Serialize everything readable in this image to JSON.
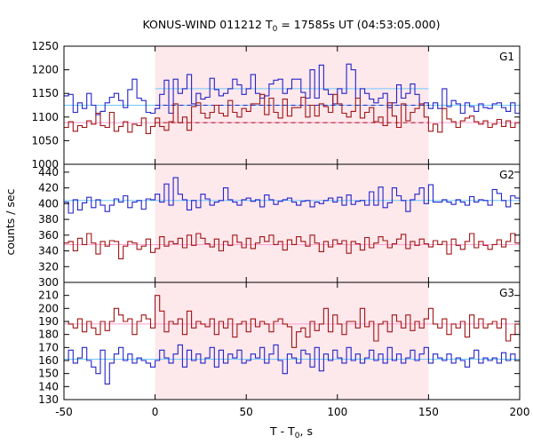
{
  "figure": {
    "title_main": "KONUS-WIND 011212 T",
    "title_sub": "0",
    "title_rest": " = 17585s UT (04:53:05.000)",
    "xlabel_main": "T - T",
    "xlabel_sub": "0",
    "xlabel_rest": ", s",
    "ylabel": "counts / sec"
  },
  "chart_data": [
    {
      "panel": "G1",
      "type": "line",
      "step": true,
      "x": [
        -50,
        -47.5,
        -45,
        -42.5,
        -40,
        -37.5,
        -35,
        -32.5,
        -30,
        -27.5,
        -25,
        -22.5,
        -20,
        -17.5,
        -15,
        -12.5,
        -10,
        -7.5,
        -5,
        -2.5,
        0,
        2.5,
        5,
        7.5,
        10,
        12.5,
        15,
        17.5,
        20,
        22.5,
        25,
        27.5,
        30,
        32.5,
        35,
        37.5,
        40,
        42.5,
        45,
        47.5,
        50,
        52.5,
        55,
        57.5,
        60,
        62.5,
        65,
        67.5,
        70,
        72.5,
        75,
        77.5,
        80,
        82.5,
        85,
        87.5,
        90,
        92.5,
        95,
        97.5,
        100,
        102.5,
        105,
        107.5,
        110,
        112.5,
        115,
        117.5,
        120,
        122.5,
        125,
        127.5,
        130,
        132.5,
        135,
        137.5,
        140,
        142.5,
        145,
        147.5,
        150,
        152.5,
        155,
        157.5,
        160,
        162.5,
        165,
        167.5,
        170,
        172.5,
        175,
        177.5,
        180,
        182.5,
        185,
        187.5,
        190,
        192.5,
        195,
        197.5,
        200
      ],
      "series": [
        {
          "color": "#2424c8",
          "values": [
            1145,
            1148,
            1110,
            1130,
            1118,
            1150,
            1125,
            1105,
            1112,
            1130,
            1142,
            1150,
            1135,
            1120,
            1158,
            1180,
            1140,
            1135,
            1110,
            1108,
            1118,
            1148,
            1178,
            1108,
            1180,
            1150,
            1160,
            1190,
            1128,
            1150,
            1138,
            1142,
            1182,
            1158,
            1145,
            1150,
            1160,
            1180,
            1168,
            1148,
            1160,
            1190,
            1150,
            1140,
            1145,
            1170,
            1178,
            1180,
            1150,
            1160,
            1180,
            1180,
            1152,
            1140,
            1200,
            1140,
            1210,
            1158,
            1148,
            1128,
            1160,
            1150,
            1212,
            1200,
            1140,
            1160,
            1150,
            1138,
            1130,
            1140,
            1150,
            1120,
            1130,
            1168,
            1140,
            1150,
            1170,
            1148,
            1125,
            1130,
            1118,
            1130,
            1118,
            1160,
            1122,
            1135,
            1128,
            1108,
            1130,
            1122,
            1112,
            1128,
            1120,
            1118,
            1128,
            1130,
            1120,
            1112,
            1130,
            1108,
            1128
          ]
        },
        {
          "color": "#a01414",
          "values": [
            1078,
            1090,
            1070,
            1082,
            1078,
            1092,
            1085,
            1108,
            1082,
            1078,
            1110,
            1070,
            1080,
            1090,
            1068,
            1085,
            1082,
            1098,
            1065,
            1080,
            1098,
            1080,
            1072,
            1090,
            1128,
            1088,
            1100,
            1072,
            1122,
            1130,
            1108,
            1098,
            1110,
            1125,
            1108,
            1102,
            1135,
            1110,
            1100,
            1118,
            1112,
            1128,
            1128,
            1148,
            1105,
            1140,
            1110,
            1098,
            1138,
            1102,
            1120,
            1120,
            1142,
            1100,
            1125,
            1102,
            1128,
            1122,
            1110,
            1148,
            1128,
            1108,
            1100,
            1112,
            1140,
            1098,
            1110,
            1120,
            1090,
            1100,
            1082,
            1130,
            1102,
            1078,
            1128,
            1092,
            1110,
            1118,
            1128,
            1100,
            1070,
            1085,
            1068,
            1118,
            1096,
            1090,
            1078,
            1092,
            1098,
            1102,
            1090,
            1085,
            1092,
            1078,
            1085,
            1095,
            1080,
            1092,
            1078,
            1088,
            1092
          ]
        }
      ],
      "reference_lines": [
        {
          "color": "#6ec8ff",
          "value": 1125
        },
        {
          "color": "#ff9fd0",
          "value": 1088
        },
        {
          "color": "#6ec8ff",
          "value": 1160,
          "x_range": [
            0,
            150
          ]
        },
        {
          "color": "#a01414",
          "value": 1088,
          "dashed": true,
          "x_range": [
            0,
            150
          ]
        },
        {
          "color": "#2424c8",
          "value": 1125,
          "dashed": true,
          "x_range": [
            0,
            150
          ]
        }
      ],
      "ylim": [
        1000,
        1250
      ],
      "yticks": [
        1000,
        1050,
        1100,
        1150,
        1200,
        1250
      ],
      "annotation": "G1"
    },
    {
      "panel": "G2",
      "type": "line",
      "step": true,
      "x": [
        -50,
        -47.5,
        -45,
        -42.5,
        -40,
        -37.5,
        -35,
        -32.5,
        -30,
        -27.5,
        -25,
        -22.5,
        -20,
        -17.5,
        -15,
        -12.5,
        -10,
        -7.5,
        -5,
        -2.5,
        0,
        2.5,
        5,
        7.5,
        10,
        12.5,
        15,
        17.5,
        20,
        22.5,
        25,
        27.5,
        30,
        32.5,
        35,
        37.5,
        40,
        42.5,
        45,
        47.5,
        50,
        52.5,
        55,
        57.5,
        60,
        62.5,
        65,
        67.5,
        70,
        72.5,
        75,
        77.5,
        80,
        82.5,
        85,
        87.5,
        90,
        92.5,
        95,
        97.5,
        100,
        102.5,
        105,
        107.5,
        110,
        112.5,
        115,
        117.5,
        120,
        122.5,
        125,
        127.5,
        130,
        132.5,
        135,
        137.5,
        140,
        142.5,
        145,
        147.5,
        150,
        152.5,
        155,
        157.5,
        160,
        162.5,
        165,
        167.5,
        170,
        172.5,
        175,
        177.5,
        180,
        182.5,
        185,
        187.5,
        190,
        192.5,
        195,
        197.5,
        200
      ],
      "series": [
        {
          "color": "#2424c8",
          "values": [
            402,
            388,
            405,
            392,
            401,
            408,
            395,
            405,
            398,
            390,
            398,
            406,
            402,
            410,
            395,
            402,
            404,
            393,
            406,
            405,
            412,
            402,
            425,
            398,
            433,
            412,
            405,
            392,
            404,
            395,
            412,
            406,
            398,
            402,
            404,
            420,
            405,
            402,
            398,
            405,
            407,
            403,
            405,
            396,
            411,
            405,
            399,
            403,
            405,
            407,
            402,
            398,
            403,
            404,
            396,
            402,
            400,
            404,
            407,
            402,
            408,
            398,
            411,
            399,
            403,
            404,
            398,
            415,
            398,
            421,
            395,
            401,
            420,
            410,
            404,
            390,
            405,
            412,
            420,
            400,
            424,
            402,
            402,
            405,
            402,
            399,
            405,
            402,
            398,
            409,
            402,
            405,
            404,
            398,
            418,
            413,
            404,
            396,
            410,
            407,
            403
          ]
        },
        {
          "color": "#a01414",
          "values": [
            350,
            352,
            340,
            356,
            348,
            362,
            350,
            336,
            352,
            346,
            353,
            352,
            330,
            346,
            352,
            350,
            342,
            346,
            355,
            338,
            343,
            358,
            346,
            352,
            349,
            356,
            344,
            360,
            347,
            362,
            356,
            349,
            345,
            355,
            340,
            352,
            347,
            360,
            351,
            344,
            356,
            343,
            350,
            358,
            352,
            360,
            348,
            352,
            341,
            354,
            348,
            358,
            352,
            346,
            360,
            350,
            339,
            352,
            345,
            354,
            349,
            353,
            337,
            352,
            349,
            341,
            357,
            344,
            350,
            358,
            353,
            344,
            349,
            355,
            361,
            343,
            352,
            347,
            355,
            349,
            345,
            353,
            348,
            352,
            336,
            355,
            347,
            342,
            352,
            362,
            344,
            352,
            347,
            342,
            348,
            354,
            345,
            352,
            362,
            350,
            355
          ]
        }
      ],
      "reference_lines": [
        {
          "color": "#6ec8ff",
          "value": 404
        },
        {
          "color": "#ff9fd0",
          "value": 348
        }
      ],
      "ylim": [
        300,
        450
      ],
      "yticks": [
        300,
        320,
        340,
        360,
        380,
        400,
        420,
        440
      ],
      "annotation": "G2"
    },
    {
      "panel": "G3",
      "type": "line",
      "step": true,
      "x": [
        -50,
        -47.5,
        -45,
        -42.5,
        -40,
        -37.5,
        -35,
        -32.5,
        -30,
        -27.5,
        -25,
        -22.5,
        -20,
        -17.5,
        -15,
        -12.5,
        -10,
        -7.5,
        -5,
        -2.5,
        0,
        2.5,
        5,
        7.5,
        10,
        12.5,
        15,
        17.5,
        20,
        22.5,
        25,
        27.5,
        30,
        32.5,
        35,
        37.5,
        40,
        42.5,
        45,
        47.5,
        50,
        52.5,
        55,
        57.5,
        60,
        62.5,
        65,
        67.5,
        70,
        72.5,
        75,
        77.5,
        80,
        82.5,
        85,
        87.5,
        90,
        92.5,
        95,
        97.5,
        100,
        102.5,
        105,
        107.5,
        110,
        112.5,
        115,
        117.5,
        120,
        122.5,
        125,
        127.5,
        130,
        132.5,
        135,
        137.5,
        140,
        142.5,
        145,
        147.5,
        150,
        152.5,
        155,
        157.5,
        160,
        162.5,
        165,
        167.5,
        170,
        172.5,
        175,
        177.5,
        180,
        182.5,
        185,
        187.5,
        190,
        192.5,
        195,
        197.5,
        200
      ],
      "series": [
        {
          "color": "#2424c8",
          "values": [
            160,
            168,
            158,
            162,
            170,
            160,
            155,
            150,
            168,
            142,
            158,
            165,
            170,
            160,
            165,
            158,
            162,
            160,
            158,
            155,
            160,
            168,
            162,
            158,
            165,
            172,
            155,
            168,
            160,
            165,
            158,
            162,
            170,
            155,
            168,
            158,
            165,
            162,
            168,
            158,
            160,
            165,
            162,
            170,
            158,
            165,
            172,
            160,
            150,
            165,
            162,
            158,
            168,
            165,
            155,
            170,
            152,
            165,
            160,
            168,
            162,
            158,
            170,
            160,
            165,
            158,
            162,
            168,
            160,
            165,
            158,
            170,
            160,
            165,
            158,
            162,
            168,
            160,
            165,
            170,
            158,
            165,
            162,
            160,
            165,
            158,
            162,
            160,
            155,
            162,
            168,
            158,
            162,
            160,
            162,
            158,
            166,
            160,
            165,
            160,
            160
          ]
        },
        {
          "color": "#a01414",
          "values": [
            190,
            188,
            185,
            192,
            182,
            190,
            185,
            180,
            190,
            183,
            190,
            200,
            195,
            190,
            192,
            180,
            190,
            195,
            192,
            185,
            210,
            198,
            182,
            190,
            188,
            192,
            180,
            198,
            185,
            190,
            188,
            186,
            192,
            180,
            190,
            185,
            192,
            178,
            188,
            190,
            182,
            192,
            186,
            190,
            188,
            182,
            190,
            192,
            188,
            186,
            170,
            182,
            185,
            178,
            190,
            183,
            188,
            200,
            182,
            195,
            188,
            180,
            190,
            190,
            185,
            200,
            186,
            190,
            175,
            188,
            190,
            182,
            195,
            190,
            185,
            195,
            183,
            190,
            185,
            192,
            200,
            188,
            185,
            192,
            180,
            188,
            185,
            190,
            178,
            195,
            185,
            192,
            185,
            188,
            190,
            185,
            192,
            175,
            180,
            188,
            178
          ]
        }
      ],
      "reference_lines": [
        {
          "color": "#6ec8ff",
          "value": 161
        },
        {
          "color": "#ff9fd0",
          "value": 188
        }
      ],
      "ylim": [
        130,
        220
      ],
      "yticks": [
        130,
        140,
        150,
        160,
        170,
        180,
        190,
        200,
        210
      ],
      "annotation": "G3"
    }
  ],
  "x_axis": {
    "xlim": [
      -50,
      200
    ],
    "xticks": [
      -50,
      0,
      50,
      100,
      150,
      200
    ]
  },
  "shaded_interval": {
    "x_range": [
      0,
      150
    ],
    "color": "#fde8ec"
  },
  "grid": false
}
